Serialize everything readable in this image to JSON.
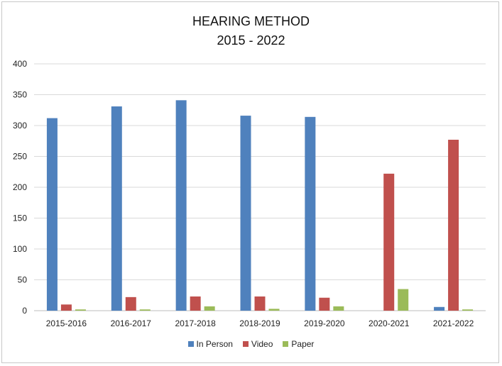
{
  "chart_data": {
    "type": "bar",
    "title_line1": "HEARING METHOD",
    "title_line2": "2015 - 2022",
    "categories": [
      "2015-2016",
      "2016-2017",
      "2017-2018",
      "2018-2019",
      "2019-2020",
      "2020-2021",
      "2021-2022"
    ],
    "series": [
      {
        "name": "In Person",
        "color": "#4F81BD",
        "values": [
          312,
          331,
          341,
          316,
          314,
          0,
          6
        ]
      },
      {
        "name": "Video",
        "color": "#C0504D",
        "values": [
          10,
          22,
          23,
          23,
          21,
          222,
          277
        ]
      },
      {
        "name": "Paper",
        "color": "#9BBB59",
        "values": [
          2,
          2,
          7,
          3,
          7,
          35,
          2
        ]
      }
    ],
    "ylim": [
      0,
      400
    ],
    "yticks": [
      0,
      50,
      100,
      150,
      200,
      250,
      300,
      350,
      400
    ],
    "grid": true,
    "legend_position": "bottom"
  }
}
